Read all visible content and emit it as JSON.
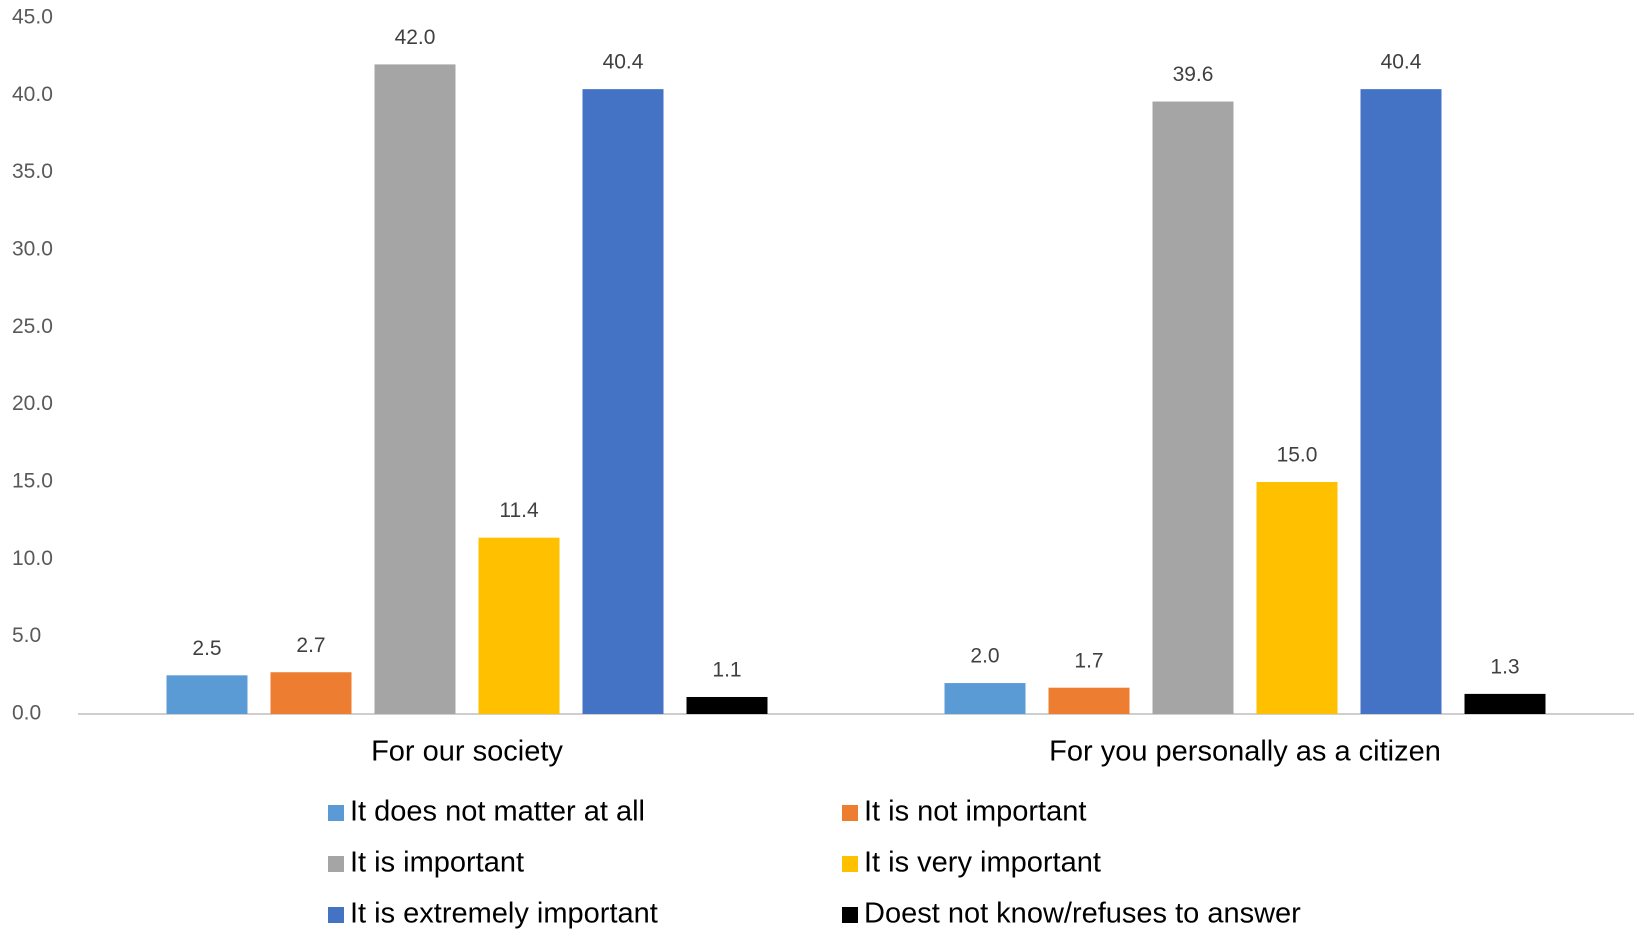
{
  "chart_data": {
    "type": "bar",
    "categories": [
      "For our society",
      "For you personally as a citizen"
    ],
    "series": [
      {
        "name": "It does not matter at all",
        "color": "#5b9bd5",
        "values": [
          2.5,
          2.0
        ],
        "value_labels": [
          "2.5",
          "2.0"
        ]
      },
      {
        "name": "It is not important",
        "color": "#ed7d31",
        "values": [
          2.7,
          1.7
        ],
        "value_labels": [
          "2.7",
          "1.7"
        ]
      },
      {
        "name": "It is important",
        "color": "#a5a5a5",
        "values": [
          42.0,
          39.6
        ],
        "value_labels": [
          "42.0",
          "39.6"
        ]
      },
      {
        "name": "It is very important",
        "color": "#ffc000",
        "values": [
          11.4,
          15.0
        ],
        "value_labels": [
          "11.4",
          "15.0"
        ]
      },
      {
        "name": "It is extremely important",
        "color": "#4472c4",
        "values": [
          40.4,
          40.4
        ],
        "value_labels": [
          "40.4",
          "40.4"
        ]
      },
      {
        "name": "Doest not know/refuses to answer",
        "color": "#000000",
        "values": [
          1.1,
          1.3
        ],
        "value_labels": [
          "1.1",
          "1.3"
        ]
      }
    ],
    "ylim": [
      0,
      45
    ],
    "yticks": [
      {
        "value": 0,
        "label": "0.0"
      },
      {
        "value": 5,
        "label": "5.0"
      },
      {
        "value": 10,
        "label": "10.0"
      },
      {
        "value": 15,
        "label": "15.0"
      },
      {
        "value": 20,
        "label": "20.0"
      },
      {
        "value": 25,
        "label": "25.0"
      },
      {
        "value": 30,
        "label": "30.0"
      },
      {
        "value": 35,
        "label": "35.0"
      },
      {
        "value": 40,
        "label": "40.0"
      },
      {
        "value": 45,
        "label": "45.0"
      }
    ],
    "grid": false,
    "legend": "bottom"
  }
}
